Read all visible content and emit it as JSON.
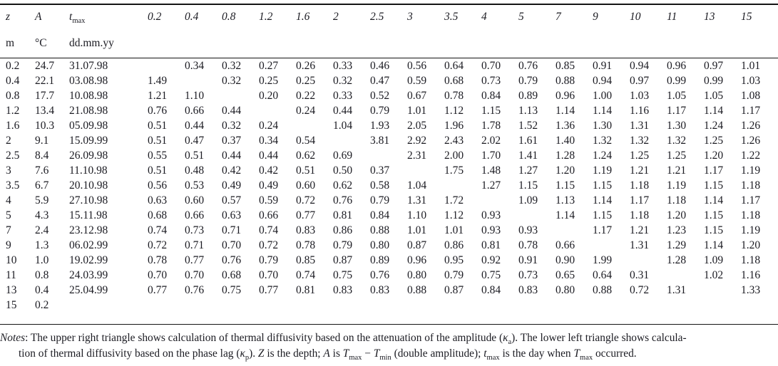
{
  "page": {
    "background_color": "#ffffff",
    "text_color": "#1b1b22",
    "rule_color": "#141414"
  },
  "table": {
    "header": {
      "col_z": {
        "symbol": "z",
        "unit": "m"
      },
      "col_a": {
        "symbol": "A",
        "unit": "°C"
      },
      "col_tmax": {
        "symbol": "t",
        "symbol_sub": "max",
        "unit": "dd.mm.yy"
      },
      "depth_columns": [
        "0.2",
        "0.4",
        "0.8",
        "1.2",
        "1.6",
        "2",
        "2.5",
        "3",
        "3.5",
        "4",
        "5",
        "7",
        "9",
        "10",
        "11",
        "13",
        "15"
      ]
    },
    "rows": [
      {
        "z": "0.2",
        "A": "24.7",
        "tmax": "31.07.98",
        "values": [
          "",
          "0.34",
          "0.32",
          "0.27",
          "0.26",
          "0.33",
          "0.46",
          "0.56",
          "0.64",
          "0.70",
          "0.76",
          "0.85",
          "0.91",
          "0.94",
          "0.96",
          "0.97",
          "1.01"
        ]
      },
      {
        "z": "0.4",
        "A": "22.1",
        "tmax": "03.08.98",
        "values": [
          "1.49",
          "",
          "0.32",
          "0.25",
          "0.25",
          "0.32",
          "0.47",
          "0.59",
          "0.68",
          "0.73",
          "0.79",
          "0.88",
          "0.94",
          "0.97",
          "0.99",
          "0.99",
          "1.03"
        ]
      },
      {
        "z": "0.8",
        "A": "17.7",
        "tmax": "10.08.98",
        "values": [
          "1.21",
          "1.10",
          "",
          "0.20",
          "0.22",
          "0.33",
          "0.52",
          "0.67",
          "0.78",
          "0.84",
          "0.89",
          "0.96",
          "1.00",
          "1.03",
          "1.05",
          "1.05",
          "1.08"
        ]
      },
      {
        "z": "1.2",
        "A": "13.4",
        "tmax": "21.08.98",
        "values": [
          "0.76",
          "0.66",
          "0.44",
          "",
          "0.24",
          "0.44",
          "0.79",
          "1.01",
          "1.12",
          "1.15",
          "1.13",
          "1.14",
          "1.14",
          "1.16",
          "1.17",
          "1.14",
          "1.17"
        ]
      },
      {
        "z": "1.6",
        "A": "10.3",
        "tmax": "05.09.98",
        "values": [
          "0.51",
          "0.44",
          "0.32",
          "0.24",
          "",
          "1.04",
          "1.93",
          "2.05",
          "1.96",
          "1.78",
          "1.52",
          "1.36",
          "1.30",
          "1.31",
          "1.30",
          "1.24",
          "1.26"
        ]
      },
      {
        "z": "2",
        "A": "9.1",
        "tmax": "15.09.99",
        "values": [
          "0.51",
          "0.47",
          "0.37",
          "0.34",
          "0.54",
          "",
          "3.81",
          "2.92",
          "2.43",
          "2.02",
          "1.61",
          "1.40",
          "1.32",
          "1.32",
          "1.32",
          "1.25",
          "1.26"
        ]
      },
      {
        "z": "2.5",
        "A": "8.4",
        "tmax": "26.09.98",
        "values": [
          "0.55",
          "0.51",
          "0.44",
          "0.44",
          "0.62",
          "0.69",
          "",
          "2.31",
          "2.00",
          "1.70",
          "1.41",
          "1.28",
          "1.24",
          "1.25",
          "1.25",
          "1.20",
          "1.22"
        ]
      },
      {
        "z": "3",
        "A": "7.6",
        "tmax": "11.10.98",
        "values": [
          "0.51",
          "0.48",
          "0.42",
          "0.42",
          "0.51",
          "0.50",
          "0.37",
          "",
          "1.75",
          "1.48",
          "1.27",
          "1.20",
          "1.19",
          "1.21",
          "1.21",
          "1.17",
          "1.19"
        ]
      },
      {
        "z": "3.5",
        "A": "6.7",
        "tmax": "20.10.98",
        "values": [
          "0.56",
          "0.53",
          "0.49",
          "0.49",
          "0.60",
          "0.62",
          "0.58",
          "1.04",
          "",
          "1.27",
          "1.15",
          "1.15",
          "1.15",
          "1.18",
          "1.19",
          "1.15",
          "1.18"
        ]
      },
      {
        "z": "4",
        "A": "5.9",
        "tmax": "27.10.98",
        "values": [
          "0.63",
          "0.60",
          "0.57",
          "0.59",
          "0.72",
          "0.76",
          "0.79",
          "1.31",
          "1.72",
          "",
          "1.09",
          "1.13",
          "1.14",
          "1.17",
          "1.18",
          "1.14",
          "1.17"
        ]
      },
      {
        "z": "5",
        "A": "4.3",
        "tmax": "15.11.98",
        "values": [
          "0.68",
          "0.66",
          "0.63",
          "0.66",
          "0.77",
          "0.81",
          "0.84",
          "1.10",
          "1.12",
          "0.93",
          "",
          "1.14",
          "1.15",
          "1.18",
          "1.20",
          "1.15",
          "1.18"
        ]
      },
      {
        "z": "7",
        "A": "2.4",
        "tmax": "23.12.98",
        "values": [
          "0.74",
          "0.73",
          "0.71",
          "0.74",
          "0.83",
          "0.86",
          "0.88",
          "1.01",
          "1.01",
          "0.93",
          "0.93",
          "",
          "1.17",
          "1.21",
          "1.23",
          "1.15",
          "1.19"
        ]
      },
      {
        "z": "9",
        "A": "1.3",
        "tmax": "06.02.99",
        "values": [
          "0.72",
          "0.71",
          "0.70",
          "0.72",
          "0.78",
          "0.79",
          "0.80",
          "0.87",
          "0.86",
          "0.81",
          "0.78",
          "0.66",
          "",
          "1.31",
          "1.29",
          "1.14",
          "1.20"
        ]
      },
      {
        "z": "10",
        "A": "1.0",
        "tmax": "19.02.99",
        "values": [
          "0.78",
          "0.77",
          "0.76",
          "0.79",
          "0.85",
          "0.87",
          "0.89",
          "0.96",
          "0.95",
          "0.92",
          "0.91",
          "0.90",
          "1.99",
          "",
          "1.28",
          "1.09",
          "1.18"
        ]
      },
      {
        "z": "11",
        "A": "0.8",
        "tmax": "24.03.99",
        "values": [
          "0.70",
          "0.70",
          "0.68",
          "0.70",
          "0.74",
          "0.75",
          "0.76",
          "0.80",
          "0.79",
          "0.75",
          "0.73",
          "0.65",
          "0.64",
          "0.31",
          "",
          "1.02",
          "1.16"
        ]
      },
      {
        "z": "13",
        "A": "0.4",
        "tmax": "25.04.99",
        "values": [
          "0.77",
          "0.76",
          "0.75",
          "0.77",
          "0.81",
          "0.83",
          "0.83",
          "0.88",
          "0.87",
          "0.84",
          "0.83",
          "0.80",
          "0.88",
          "0.72",
          "1.31",
          "",
          "1.33"
        ]
      },
      {
        "z": "15",
        "A": "0.2",
        "tmax": "",
        "values": [
          "",
          "",
          "",
          "",
          "",
          "",
          "",
          "",
          "",
          "",
          "",
          "",
          "",
          "",
          "",
          "",
          ""
        ]
      }
    ]
  },
  "notes": {
    "lines": [
      [
        {
          "style": "i",
          "text": "Notes"
        },
        {
          "style": "n",
          "text": ": The upper right triangle shows calculation of thermal diffusivity based on the attenuation of the amplitude ("
        },
        {
          "style": "i",
          "text": "κ"
        },
        {
          "style": "s",
          "text": "a"
        },
        {
          "style": "n",
          "text": "). The lower left triangle shows calcula-"
        }
      ],
      [
        {
          "style": "n",
          "text": "tion of thermal diffusivity based on the phase lag ("
        },
        {
          "style": "i",
          "text": "κ"
        },
        {
          "style": "s",
          "text": "p"
        },
        {
          "style": "n",
          "text": "). "
        },
        {
          "style": "i",
          "text": "Z"
        },
        {
          "style": "n",
          "text": " is the depth; "
        },
        {
          "style": "i",
          "text": "A"
        },
        {
          "style": "n",
          "text": " is "
        },
        {
          "style": "i",
          "text": "T"
        },
        {
          "style": "s",
          "text": "max"
        },
        {
          "style": "n",
          "text": " − "
        },
        {
          "style": "i",
          "text": "T"
        },
        {
          "style": "s",
          "text": "min"
        },
        {
          "style": "n",
          "text": " (double amplitude); "
        },
        {
          "style": "i",
          "text": "t"
        },
        {
          "style": "s",
          "text": "max"
        },
        {
          "style": "n",
          "text": " is the day when "
        },
        {
          "style": "i",
          "text": "T"
        },
        {
          "style": "s",
          "text": "max"
        },
        {
          "style": "n",
          "text": " occurred."
        }
      ]
    ]
  }
}
